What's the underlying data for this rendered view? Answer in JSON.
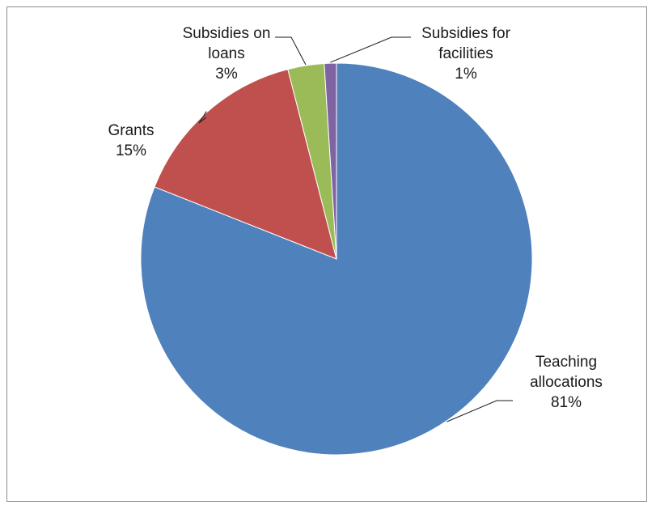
{
  "chart_data": {
    "type": "pie",
    "title": "",
    "categories": [
      "Teaching allocations",
      "Grants",
      "Subsidies on loans",
      "Subsidies for facilities"
    ],
    "values": [
      81,
      15,
      3,
      1
    ],
    "unit": "%",
    "start_angle_deg": 0,
    "direction": "clockwise",
    "colors": [
      "#4f81bd",
      "#c0504d",
      "#9bbb59",
      "#8064a2"
    ],
    "legend": "none",
    "labels": [
      {
        "lines": [
          "Teaching",
          "allocations"
        ],
        "percent": "81%"
      },
      {
        "lines": [
          "Grants"
        ],
        "percent": "15%"
      },
      {
        "lines": [
          "Subsidies on",
          "loans"
        ],
        "percent": "3%"
      },
      {
        "lines": [
          "Subsidies for",
          "facilities"
        ],
        "percent": "1%"
      }
    ]
  }
}
